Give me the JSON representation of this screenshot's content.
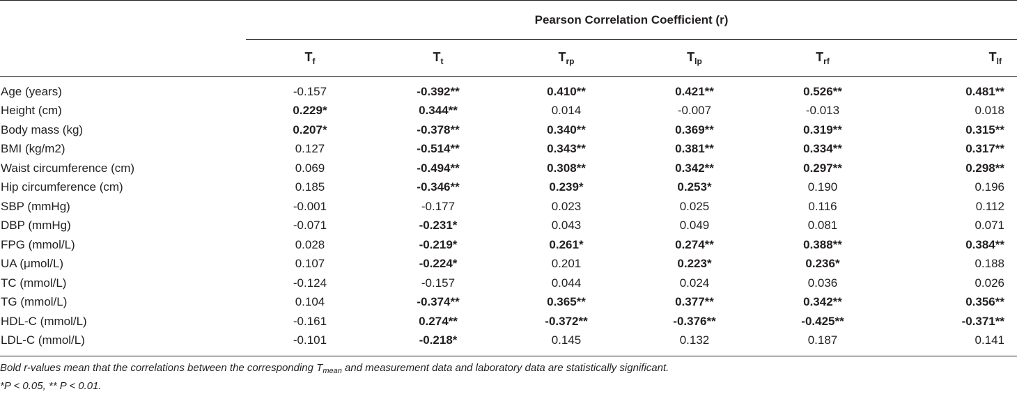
{
  "table": {
    "group_header": "Pearson Correlation Coefficient (r)",
    "columns": [
      {
        "base": "T",
        "sub": "f"
      },
      {
        "base": "T",
        "sub": "t"
      },
      {
        "base": "T",
        "sub": "rp"
      },
      {
        "base": "T",
        "sub": "lp"
      },
      {
        "base": "T",
        "sub": "rf"
      },
      {
        "base": "T",
        "sub": "lf"
      }
    ],
    "rows": [
      {
        "label": "Age (years)",
        "values": [
          "-0.157",
          "-0.392**",
          "0.410**",
          "0.421**",
          "0.526**",
          "0.481**"
        ],
        "bold": [
          false,
          true,
          true,
          true,
          true,
          true
        ]
      },
      {
        "label": "Height (cm)",
        "values": [
          "0.229*",
          "0.344**",
          "0.014",
          "-0.007",
          "-0.013",
          "0.018"
        ],
        "bold": [
          true,
          true,
          false,
          false,
          false,
          false
        ]
      },
      {
        "label": "Body mass (kg)",
        "values": [
          "0.207*",
          "-0.378**",
          "0.340**",
          "0.369**",
          "0.319**",
          "0.315**"
        ],
        "bold": [
          true,
          true,
          true,
          true,
          true,
          true
        ]
      },
      {
        "label": "BMI (kg/m2)",
        "values": [
          "0.127",
          "-0.514**",
          "0.343**",
          "0.381**",
          "0.334**",
          "0.317**"
        ],
        "bold": [
          false,
          true,
          true,
          true,
          true,
          true
        ]
      },
      {
        "label": "Waist circumference (cm)",
        "values": [
          "0.069",
          "-0.494**",
          "0.308**",
          "0.342**",
          "0.297**",
          "0.298**"
        ],
        "bold": [
          false,
          true,
          true,
          true,
          true,
          true
        ]
      },
      {
        "label": "Hip circumference (cm)",
        "values": [
          "0.185",
          "-0.346**",
          "0.239*",
          "0.253*",
          "0.190",
          "0.196"
        ],
        "bold": [
          false,
          true,
          true,
          true,
          false,
          false
        ]
      },
      {
        "label": "SBP (mmHg)",
        "values": [
          "-0.001",
          "-0.177",
          "0.023",
          "0.025",
          "0.116",
          "0.112"
        ],
        "bold": [
          false,
          false,
          false,
          false,
          false,
          false
        ]
      },
      {
        "label": "DBP (mmHg)",
        "values": [
          "-0.071",
          "-0.231*",
          "0.043",
          "0.049",
          "0.081",
          "0.071"
        ],
        "bold": [
          false,
          true,
          false,
          false,
          false,
          false
        ]
      },
      {
        "label": "FPG (mmol/L)",
        "values": [
          "0.028",
          "-0.219*",
          "0.261*",
          "0.274**",
          "0.388**",
          "0.384**"
        ],
        "bold": [
          false,
          true,
          true,
          true,
          true,
          true
        ]
      },
      {
        "label": "UA (μmol/L)",
        "values": [
          "0.107",
          "-0.224*",
          "0.201",
          "0.223*",
          "0.236*",
          "0.188"
        ],
        "bold": [
          false,
          true,
          false,
          true,
          true,
          false
        ]
      },
      {
        "label": "TC (mmol/L)",
        "values": [
          "-0.124",
          "-0.157",
          "0.044",
          "0.024",
          "0.036",
          "0.026"
        ],
        "bold": [
          false,
          false,
          false,
          false,
          false,
          false
        ]
      },
      {
        "label": "TG (mmol/L)",
        "values": [
          "0.104",
          "-0.374**",
          "0.365**",
          "0.377**",
          "0.342**",
          "0.356**"
        ],
        "bold": [
          false,
          true,
          true,
          true,
          true,
          true
        ]
      },
      {
        "label": "HDL-C (mmol/L)",
        "values": [
          "-0.161",
          "0.274**",
          "-0.372**",
          "-0.376**",
          "-0.425**",
          "-0.371**"
        ],
        "bold": [
          false,
          true,
          true,
          true,
          true,
          true
        ]
      },
      {
        "label": "LDL-C (mmol/L)",
        "values": [
          "-0.101",
          "-0.218*",
          "0.145",
          "0.132",
          "0.187",
          "0.141"
        ],
        "bold": [
          false,
          true,
          false,
          false,
          false,
          false
        ]
      }
    ]
  },
  "footnotes": {
    "note1_before": "Bold r-values mean that the correlations between the corresponding ",
    "note1_T": "T",
    "note1_sub": "mean",
    "note1_after": " and measurement data and laboratory data are statistically significant.",
    "note2": "*P < 0.05, ** P < 0.01."
  }
}
